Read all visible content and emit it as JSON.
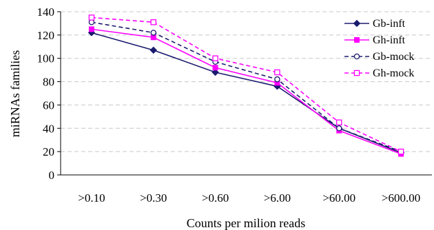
{
  "chart_data": {
    "type": "line",
    "xlabel": "Counts per milion reads",
    "ylabel": "miRNAs families",
    "categories": [
      ">0.10",
      ">0.30",
      ">0.60",
      ">6.00",
      ">60.00",
      ">600.00"
    ],
    "ylim": [
      0,
      140
    ],
    "yticks": [
      "0",
      "20",
      "40",
      "60",
      "80",
      "100",
      "120",
      "140"
    ],
    "grid": "horizontal dashed",
    "legend_position": "top-right",
    "series": [
      {
        "name": "Gb-inft",
        "values": [
          122,
          107,
          88,
          76,
          40,
          19
        ],
        "color": "#1a1a6e",
        "dash": "solid",
        "marker": "filled-diamond"
      },
      {
        "name": "Gh-inft",
        "values": [
          125,
          118,
          92,
          79,
          38,
          18
        ],
        "color": "#ff00ff",
        "dash": "solid",
        "marker": "filled-square"
      },
      {
        "name": "Gb-mock",
        "values": [
          131,
          122,
          97,
          82,
          40,
          20
        ],
        "color": "#1a1a6e",
        "dash": "dashed",
        "marker": "open-circle"
      },
      {
        "name": "Gh-mock",
        "values": [
          135,
          131,
          100,
          88,
          45,
          20
        ],
        "color": "#ff00ff",
        "dash": "dashed",
        "marker": "open-square"
      }
    ]
  }
}
